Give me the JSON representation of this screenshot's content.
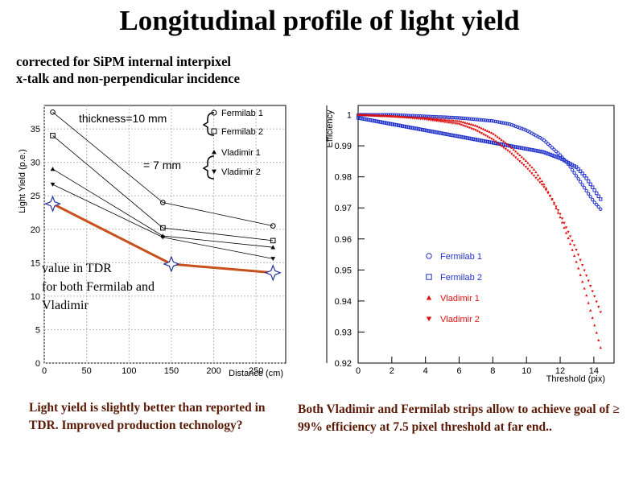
{
  "title": "Longitudinal profile of light yield",
  "subtitle_lines": [
    "corrected for SiPM internal interpixel",
    "x-talk and non-perpendicular incidence"
  ],
  "left_chart": {
    "ylabel": "Light Yield (p.e.)",
    "xlabel": "Distance (cm)",
    "legend_thick10": "thickness=10 mm",
    "legend_thick7": "= 7 mm",
    "tdr_note_lines": [
      "value in TDR",
      "for both Fermilab and",
      "Vladimir"
    ]
  },
  "right_chart": {
    "ylabel": "Efficiency",
    "xlabel": "Threshold (pix)"
  },
  "note_left": "Light yield is slightly better than reported in TDR. Improved production technology?",
  "note_right": "Both Vladimir and Fermilab strips allow to achieve goal of ≥ 99% efficiency at 7.5 pixel threshold at far end..",
  "colors": {
    "blue": "#2233cc",
    "red": "#dd1111",
    "tdr_line": "#c8501c",
    "text_note": "#5a1a05"
  },
  "chart_data": [
    {
      "type": "line",
      "x": [
        10,
        140,
        270
      ],
      "series": [
        {
          "name": "Fermilab 1",
          "marker": "open-circle",
          "values": [
            37.5,
            24,
            20.5
          ]
        },
        {
          "name": "Fermilab 2",
          "marker": "open-square",
          "values": [
            34,
            20.2,
            18.3
          ]
        },
        {
          "name": "Vladimir 1",
          "marker": "triangle-up",
          "values": [
            29,
            19,
            17.3
          ]
        },
        {
          "name": "Vladimir 2",
          "marker": "triangle-down",
          "values": [
            26.7,
            18.8,
            15.6
          ]
        },
        {
          "name": "value in TDR",
          "marker": "star",
          "x": [
            10,
            150,
            270
          ],
          "values": [
            23.8,
            14.8,
            13.5
          ]
        }
      ],
      "xlim": [
        0,
        285
      ],
      "ylim": [
        0,
        38.5
      ],
      "xticks": [
        0,
        50,
        100,
        150,
        200,
        250
      ],
      "yticks": [
        0,
        5,
        10,
        15,
        20,
        25,
        30,
        35
      ],
      "xlabel": "Distance (cm)",
      "ylabel": "Light Yield (p.e.)",
      "legend": [
        "Fermilab 1",
        "Fermilab 2",
        "Vladimir 1",
        "Vladimir 2"
      ],
      "legend_placement": "top-right"
    },
    {
      "type": "scatter",
      "xlim": [
        0,
        15.2
      ],
      "ylim": [
        0.92,
        1.003
      ],
      "xticks": [
        0,
        2,
        4,
        6,
        8,
        10,
        12,
        14
      ],
      "yticks": [
        0.92,
        0.93,
        0.94,
        0.95,
        0.96,
        0.97,
        0.98,
        0.99,
        1
      ],
      "xlabel": "Threshold (pix)",
      "ylabel": "Efficiency",
      "legend_placement": "bottom-right",
      "series": [
        {
          "name": "Fermilab 1",
          "marker": "open-circle",
          "color": "#2233cc",
          "x": [
            0,
            2,
            4,
            6,
            7,
            8,
            9,
            10,
            11,
            12,
            12.5,
            13,
            13.5,
            14,
            14.5
          ],
          "values": [
            1.0,
            1.0,
            0.9995,
            0.999,
            0.9985,
            0.998,
            0.997,
            0.995,
            0.992,
            0.987,
            0.984,
            0.98,
            0.976,
            0.972,
            0.969
          ]
        },
        {
          "name": "Fermilab 2",
          "marker": "open-square",
          "color": "#2233cc",
          "x": [
            0,
            1,
            2,
            4,
            6,
            8,
            10,
            11,
            12,
            13,
            13.5,
            14,
            14.5
          ],
          "values": [
            0.999,
            0.998,
            0.997,
            0.995,
            0.993,
            0.991,
            0.989,
            0.988,
            0.986,
            0.983,
            0.98,
            0.976,
            0.972
          ]
        },
        {
          "name": "Vladimir 1",
          "marker": "triangle-up",
          "color": "#dd1111",
          "x": [
            0,
            2,
            4,
            6,
            7,
            8,
            9,
            10,
            10.5,
            11,
            11.5,
            12,
            12.5,
            13,
            13.5,
            14,
            14.5
          ],
          "values": [
            1.0,
            0.9995,
            0.999,
            0.998,
            0.9965,
            0.994,
            0.99,
            0.985,
            0.982,
            0.978,
            0.973,
            0.967,
            0.96,
            0.952,
            0.943,
            0.933,
            0.923
          ]
        },
        {
          "name": "Vladimir 2",
          "marker": "triangle-down",
          "color": "#dd1111",
          "x": [
            0,
            2,
            4,
            6,
            7,
            8,
            9,
            10,
            11,
            11.5,
            12,
            12.5,
            13,
            13.5,
            14,
            14.5
          ],
          "values": [
            1.0,
            0.9995,
            0.9985,
            0.997,
            0.995,
            0.992,
            0.988,
            0.983,
            0.977,
            0.973,
            0.968,
            0.962,
            0.956,
            0.949,
            0.942,
            0.935
          ]
        }
      ]
    }
  ]
}
